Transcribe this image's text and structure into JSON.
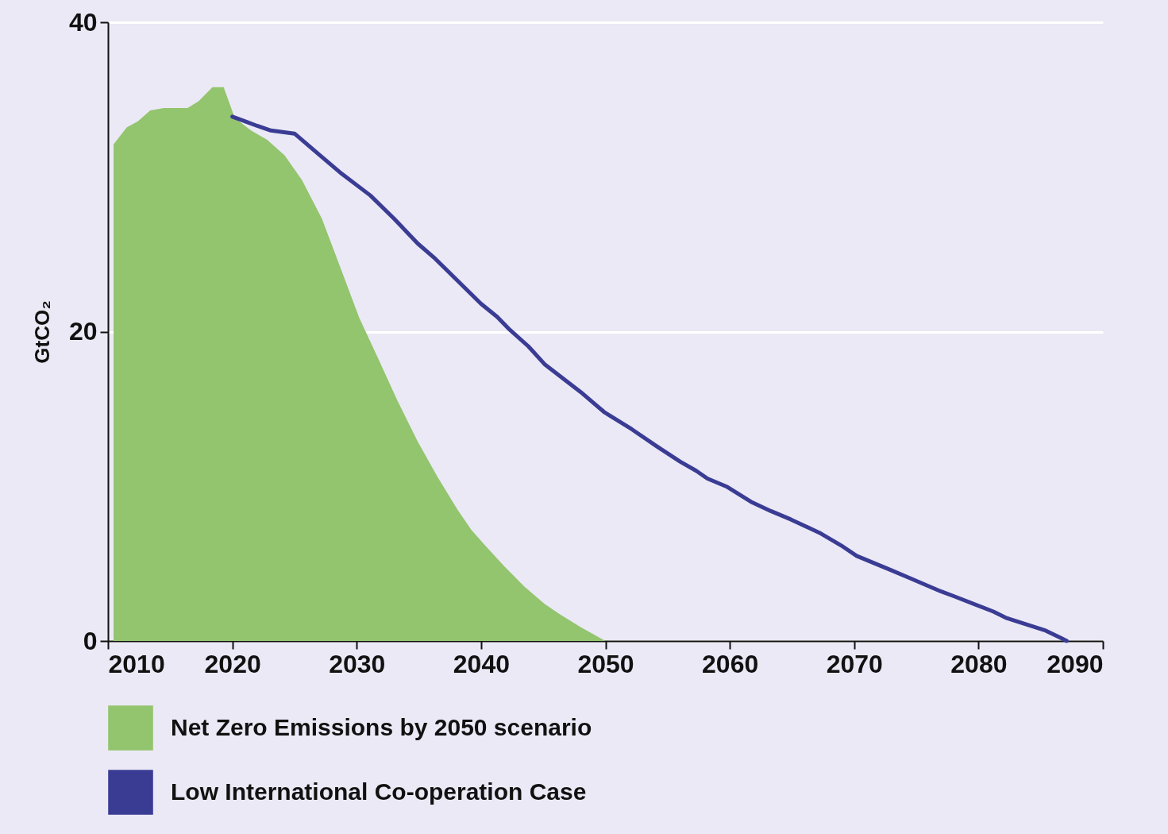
{
  "chart_data": {
    "type": "area",
    "ylabel": "GtCO₂",
    "xlim": [
      2010,
      2090
    ],
    "xticks": [
      2010,
      2020,
      2030,
      2040,
      2050,
      2060,
      2070,
      2080,
      2090
    ],
    "ylim": [
      0,
      40
    ],
    "yticks": [
      0,
      20,
      40
    ],
    "grid": "y",
    "legend": "bottom",
    "series": [
      {
        "name": "Net Zero Emissions by 2050 scenario",
        "type": "area",
        "color": "#93c46e",
        "x": [
          2010.45,
          2011.5,
          2012.4,
          2013.4,
          2014.5,
          2016.4,
          2017.3,
          2018.4,
          2019.3,
          2020.2,
          2021.5,
          2022.8,
          2024.2,
          2025.6,
          2027.2,
          2028.8,
          2030.2,
          2031.7,
          2033.3,
          2034.9,
          2036.5,
          2038.1,
          2039.2,
          2040.3,
          2041.9,
          2043.5,
          2045.1,
          2046.3,
          2048.0,
          2050.0
        ],
        "values": [
          32.1,
          33.2,
          33.6,
          34.3,
          34.45,
          34.45,
          34.9,
          35.8,
          35.8,
          33.8,
          33.0,
          32.4,
          31.4,
          29.8,
          27.3,
          23.9,
          20.9,
          18.3,
          15.5,
          12.9,
          10.6,
          8.5,
          7.2,
          6.2,
          4.8,
          3.5,
          2.4,
          1.75,
          0.9,
          0
        ]
      },
      {
        "name": "Low International Co-operation Case",
        "type": "line",
        "color": "#3a3c94",
        "x": [
          2020.0,
          2021.0,
          2022.0,
          2023.1,
          2025.0,
          2026.9,
          2028.8,
          2031.1,
          2033.0,
          2034.9,
          2036.2,
          2038.1,
          2040.0,
          2041.3,
          2042.2,
          2043.8,
          2045.1,
          2048.0,
          2049.9,
          2052.1,
          2054.1,
          2056.0,
          2057.3,
          2058.2,
          2059.8,
          2061.7,
          2063.3,
          2064.9,
          2067.2,
          2069.1,
          2070.2,
          2072.9,
          2074.5,
          2077.0,
          2078.0,
          2081.2,
          2082.2,
          2085.4,
          2086.6,
          2087.1
        ],
        "values": [
          33.9,
          33.6,
          33.3,
          33.0,
          32.8,
          31.5,
          30.2,
          28.8,
          27.3,
          25.7,
          24.8,
          23.3,
          21.8,
          20.95,
          20.2,
          19.05,
          17.9,
          16.1,
          14.8,
          13.7,
          12.6,
          11.6,
          11.0,
          10.5,
          9.96,
          9.0,
          8.4,
          7.86,
          7.0,
          6.1,
          5.5,
          4.6,
          4.06,
          3.2,
          2.9,
          1.9,
          1.5,
          0.67,
          0.2,
          0
        ]
      }
    ]
  }
}
